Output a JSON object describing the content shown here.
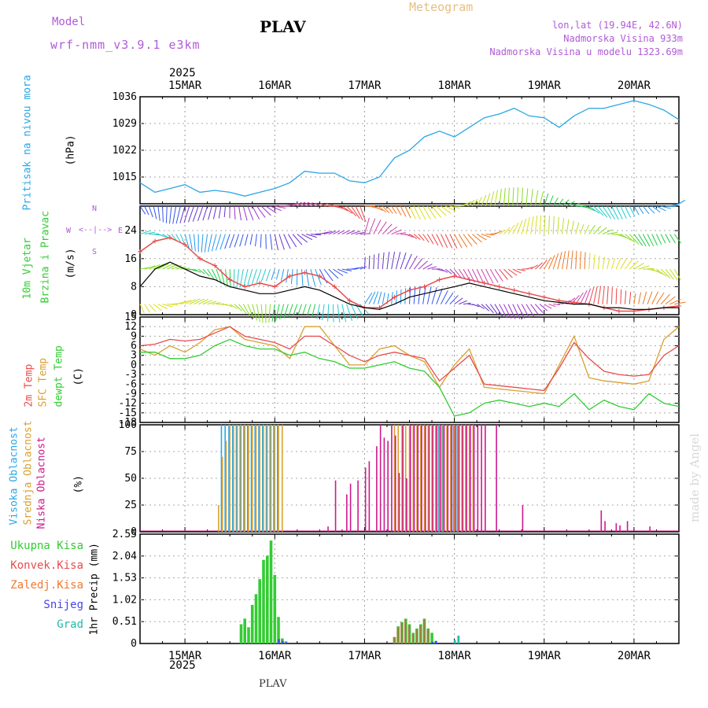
{
  "header": {
    "model_label": "Model",
    "model_name": "wrf-nmm_v3.9.1 e3km",
    "station": "PLAV",
    "title": "Meteogram",
    "lonlat": "lon,lat (19.94E, 42.6N)",
    "elevation": "Nadmorska Visina 933m",
    "model_elevation": "Nadmorska Visina u modelu 1323.69m",
    "footer_station": "PLAV",
    "watermark": "made by Angel"
  },
  "colors": {
    "pressure": "#2aa6e6",
    "wind_speed": "#000000",
    "gust": "#e84c4c",
    "temp2m": "#e84c4c",
    "sfc_temp": "#d9a030",
    "dewpt": "#33cc33",
    "high_cloud": "#2aa6e6",
    "mid_cloud": "#d9a030",
    "low_cloud": "#cc1a8c",
    "total_precip": "#33cc33",
    "conv_precip": "#e84c4c",
    "frozen": "#f07830",
    "snow": "#4444ee",
    "graupel": "#22bbaa"
  },
  "chart_data": [
    {
      "type": "line",
      "id": "pressure",
      "title": "Pritisak na nivou mora",
      "ylabel": "(hPa)",
      "ylim": [
        1008,
        1036
      ],
      "yticks": [
        1015,
        1022,
        1029,
        1036
      ],
      "xlim": [
        0,
        144
      ],
      "date_ticks": [
        "15MAR",
        "16MAR",
        "17MAR",
        "18MAR",
        "19MAR",
        "20MAR"
      ],
      "year_label": "2025",
      "series": [
        {
          "name": "Pritisak",
          "x": [
            0,
            4,
            8,
            12,
            16,
            20,
            24,
            28,
            32,
            36,
            40,
            44,
            48,
            52,
            56,
            60,
            64,
            68,
            72,
            76,
            80,
            84,
            88,
            92,
            96,
            100,
            104,
            108,
            112,
            116,
            120,
            124,
            128,
            132,
            136,
            140,
            144
          ],
          "values": [
            1013.5,
            1011,
            1012,
            1013,
            1011,
            1011.5,
            1011,
            1010,
            1011,
            1012,
            1013.5,
            1016.5,
            1016,
            1016,
            1014,
            1013.5,
            1015,
            1020,
            1022,
            1025.5,
            1027,
            1025.5,
            1028,
            1030.5,
            1031.5,
            1033,
            1031,
            1030.5,
            1028,
            1031,
            1033,
            1033,
            1034,
            1035,
            1034,
            1032.5,
            1030
          ]
        }
      ]
    },
    {
      "type": "line",
      "id": "wind",
      "title": "10m Vjetar",
      "subtitle": "Brzina i Pravac",
      "ylabel": "(m/s)",
      "ylim": [
        0,
        31
      ],
      "yticks": [
        0,
        8,
        16,
        24
      ],
      "compass": {
        "n": "N",
        "s": "S",
        "e": "E",
        "w": "W"
      },
      "series": [
        {
          "name": "Brzina",
          "x": [
            0,
            4,
            8,
            12,
            16,
            20,
            24,
            28,
            32,
            36,
            40,
            44,
            48,
            52,
            56,
            60,
            64,
            68,
            72,
            76,
            80,
            84,
            88,
            92,
            96,
            100,
            104,
            108,
            112,
            116,
            120,
            124,
            128,
            132,
            136,
            140,
            144
          ],
          "values": [
            8,
            13,
            15,
            13,
            11,
            10,
            8,
            7,
            6,
            6,
            7,
            8,
            7,
            5,
            3,
            2,
            1.5,
            3,
            5,
            6,
            7,
            8,
            9,
            8,
            7,
            6,
            5,
            4,
            3.5,
            3,
            3,
            2,
            2,
            1.5,
            1.5,
            2,
            2
          ]
        },
        {
          "name": "Udari",
          "x": [
            0,
            4,
            8,
            12,
            16,
            20,
            24,
            28,
            32,
            36,
            40,
            44,
            48,
            52,
            56,
            60,
            64,
            68,
            72,
            76,
            80,
            84,
            88,
            92,
            96,
            100,
            104,
            108,
            112,
            116,
            120,
            124,
            128,
            132,
            136,
            140,
            144
          ],
          "values": [
            18,
            21,
            22,
            20,
            16,
            14,
            10,
            8,
            9,
            8,
            11,
            12,
            11,
            8,
            4,
            2,
            2,
            5,
            7,
            8,
            10,
            11,
            10,
            9,
            8,
            7,
            6,
            5,
            4,
            3.5,
            3,
            2,
            1,
            1,
            1.5,
            2,
            2.5
          ]
        }
      ],
      "arrow_rows": [
        3,
        13,
        23,
        31
      ]
    },
    {
      "type": "line",
      "id": "temperature",
      "ylabel": "(C)",
      "labels": [
        "2m Temp",
        "SFC Temp",
        "dewpt Temp"
      ],
      "ylim": [
        -18,
        15
      ],
      "yticks": [
        -18,
        -15,
        -12,
        -9,
        -6,
        -3,
        0,
        3,
        6,
        9,
        12,
        15
      ],
      "series": [
        {
          "name": "2m Temp",
          "x": [
            0,
            4,
            8,
            12,
            16,
            20,
            24,
            28,
            32,
            36,
            40,
            44,
            48,
            52,
            56,
            60,
            64,
            68,
            72,
            76,
            80,
            84,
            88,
            92,
            96,
            100,
            104,
            108,
            112,
            116,
            120,
            124,
            128,
            132,
            136,
            140,
            144
          ],
          "values": [
            6,
            6.5,
            8,
            7.5,
            8,
            10,
            12,
            9,
            8,
            7,
            5,
            9,
            9,
            6,
            3,
            1,
            3,
            4,
            3,
            2,
            -5,
            -1,
            3,
            -6,
            -6.5,
            -7,
            -7.5,
            -8,
            -1,
            7,
            2,
            -2,
            -3,
            -3.5,
            -3,
            3,
            6
          ]
        },
        {
          "name": "SFC Temp",
          "x": [
            0,
            4,
            8,
            12,
            16,
            20,
            24,
            28,
            32,
            36,
            40,
            44,
            48,
            52,
            56,
            60,
            64,
            68,
            72,
            76,
            80,
            84,
            88,
            92,
            96,
            100,
            104,
            108,
            112,
            116,
            120,
            124,
            128,
            132,
            136,
            140,
            144
          ],
          "values": [
            5,
            3,
            6,
            4,
            7,
            11,
            12,
            8,
            7,
            6,
            2,
            12,
            12,
            6,
            0,
            0,
            5,
            6,
            3,
            1,
            -7,
            0,
            5,
            -7,
            -7.5,
            -8,
            -8.5,
            -9,
            0,
            9,
            -4,
            -5,
            -5.5,
            -6,
            -5,
            8,
            12
          ]
        },
        {
          "name": "dewpt Temp",
          "x": [
            0,
            4,
            8,
            12,
            16,
            20,
            24,
            28,
            32,
            36,
            40,
            44,
            48,
            52,
            56,
            60,
            64,
            68,
            72,
            76,
            80,
            84,
            88,
            92,
            96,
            100,
            104,
            108,
            112,
            116,
            120,
            124,
            128,
            132,
            136,
            140,
            144
          ],
          "values": [
            4,
            4,
            2,
            2,
            3,
            6,
            8,
            6,
            5,
            5,
            3,
            4,
            2,
            1,
            -1,
            -1,
            0,
            1,
            -1,
            -2,
            -7,
            -16,
            -15,
            -12,
            -11,
            -12,
            -13,
            -12,
            -13,
            -9,
            -14,
            -11,
            -13,
            -14,
            -9,
            -12,
            -13
          ]
        }
      ]
    },
    {
      "type": "bar",
      "id": "clouds",
      "ylabel": "(%)",
      "labels": [
        "Visoka Oblacnost",
        "Srednja Oblacnost",
        "Niska Oblacnost"
      ],
      "ylim": [
        0,
        100
      ],
      "yticks": [
        0,
        25,
        50,
        75,
        100
      ],
      "series": [
        {
          "name": "Visoka Oblacnost",
          "x": [
            22,
            23,
            24,
            25,
            26,
            27,
            28,
            29,
            30,
            31,
            32,
            33,
            34,
            35,
            36,
            37,
            80,
            81,
            84,
            85
          ],
          "values": [
            100,
            100,
            100,
            100,
            100,
            100,
            100,
            100,
            100,
            100,
            100,
            100,
            100,
            100,
            100,
            100,
            100,
            100,
            100,
            100
          ]
        },
        {
          "name": "Srednja Oblacnost",
          "x": [
            21,
            22,
            23,
            24,
            25,
            26,
            27,
            28,
            29,
            30,
            31,
            32,
            33,
            34,
            35,
            36,
            37,
            38,
            68,
            69,
            70,
            71,
            72,
            73,
            74,
            75,
            76,
            77,
            78,
            79,
            80,
            81,
            82,
            83,
            84,
            85,
            86,
            87,
            88,
            89
          ],
          "values": [
            25,
            70,
            85,
            100,
            100,
            100,
            100,
            100,
            100,
            100,
            100,
            100,
            100,
            100,
            100,
            100,
            100,
            100,
            100,
            100,
            100,
            100,
            100,
            100,
            100,
            100,
            100,
            100,
            100,
            100,
            100,
            100,
            100,
            100,
            100,
            100,
            100,
            100,
            100,
            100
          ]
        },
        {
          "name": "Niska Oblacnost",
          "x": [
            50,
            52,
            55,
            56,
            58,
            60,
            61,
            63,
            64,
            65,
            66,
            67,
            68,
            69,
            70,
            71,
            72,
            73,
            74,
            75,
            76,
            77,
            78,
            79,
            80,
            81,
            82,
            83,
            84,
            85,
            86,
            87,
            88,
            89,
            90,
            91,
            92,
            95,
            102,
            123,
            124,
            127,
            128,
            130,
            136
          ],
          "values": [
            5,
            48,
            35,
            45,
            48,
            60,
            66,
            80,
            100,
            88,
            85,
            100,
            90,
            55,
            100,
            50,
            100,
            100,
            100,
            100,
            100,
            100,
            100,
            100,
            100,
            100,
            100,
            100,
            100,
            100,
            100,
            100,
            100,
            100,
            100,
            100,
            100,
            100,
            25,
            20,
            10,
            8,
            6,
            10,
            5
          ]
        }
      ]
    },
    {
      "type": "bar",
      "id": "precip",
      "ylabel": "1hr Precip (mm)",
      "labels": [
        "Ukupna Kisa",
        "Konvek.Kisa",
        "Zaledj.Kisa",
        "Snijeg",
        "Grad"
      ],
      "ylim": [
        0,
        2.55
      ],
      "yticks": [
        0,
        0.51,
        1.02,
        1.53,
        2.04,
        2.55
      ],
      "series": [
        {
          "name": "Ukupna Kisa",
          "x": [
            27,
            28,
            29,
            30,
            31,
            32,
            33,
            34,
            35,
            36,
            37,
            38,
            39,
            68,
            69,
            70,
            71,
            72,
            73,
            74,
            75,
            76,
            77,
            78,
            79
          ],
          "values": [
            0.45,
            0.58,
            0.38,
            0.9,
            1.15,
            1.5,
            1.95,
            2.05,
            2.4,
            1.6,
            0.62,
            0.12,
            0.05,
            0.15,
            0.4,
            0.5,
            0.58,
            0.45,
            0.25,
            0.35,
            0.45,
            0.58,
            0.35,
            0.25,
            0.05
          ]
        },
        {
          "name": "Konvek.Kisa",
          "x": [
            68,
            69,
            70,
            71,
            72,
            73,
            74,
            75,
            76,
            77
          ],
          "values": [
            0.15,
            0.38,
            0.48,
            0.55,
            0.42,
            0.22,
            0.32,
            0.42,
            0.55,
            0.32
          ]
        },
        {
          "name": "Zaledj.Kisa",
          "x": [],
          "values": []
        },
        {
          "name": "Snijeg",
          "x": [
            37,
            38,
            39,
            78,
            79,
            84,
            85
          ],
          "values": [
            0.1,
            0.06,
            0.03,
            0.04,
            0.06,
            0.08,
            0.18
          ]
        },
        {
          "name": "Grad",
          "x": [
            84,
            85
          ],
          "values": [
            0.08,
            0.18
          ]
        }
      ]
    }
  ]
}
